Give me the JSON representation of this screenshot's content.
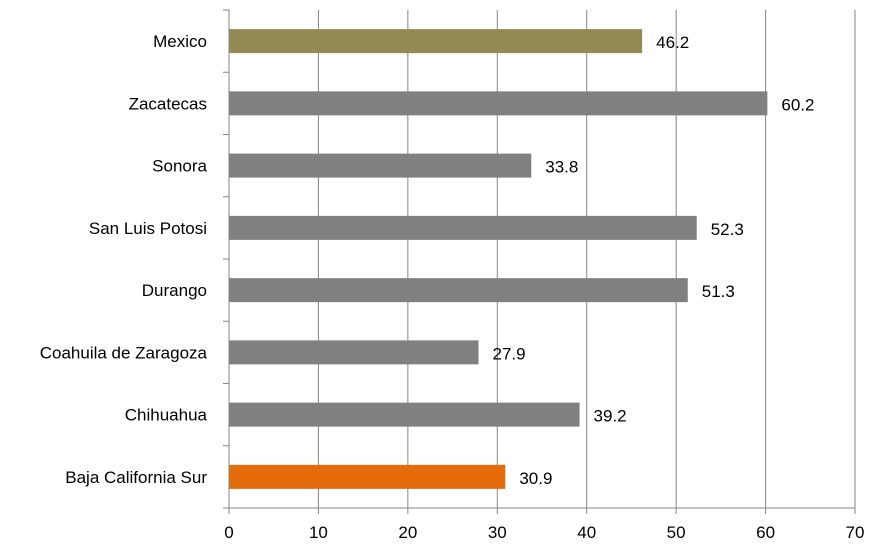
{
  "chart_data": {
    "type": "bar",
    "orientation": "horizontal",
    "categories": [
      "Baja California Sur",
      "Chihuahua",
      "Coahuila de Zaragoza",
      "Durango",
      "San Luis Potosi",
      "Sonora",
      "Zacatecas",
      "Mexico"
    ],
    "values": [
      30.9,
      39.2,
      27.9,
      51.3,
      52.3,
      33.8,
      60.2,
      46.2
    ],
    "value_labels": [
      "30.9",
      "39.2",
      "27.9",
      "51.3",
      "52.3",
      "33.8",
      "60.2",
      "46.2"
    ],
    "bar_colors": [
      "#e46c0a",
      "#808080",
      "#808080",
      "#808080",
      "#808080",
      "#808080",
      "#808080",
      "#948a54"
    ],
    "xlim": [
      0,
      70
    ],
    "xticks": [
      0,
      10,
      20,
      30,
      40,
      50,
      60,
      70
    ],
    "xtick_labels": [
      "0",
      "10",
      "20",
      "30",
      "40",
      "50",
      "60",
      "70"
    ],
    "grid": "vertical",
    "legend": "none",
    "title": "",
    "xlabel": "",
    "ylabel": ""
  }
}
